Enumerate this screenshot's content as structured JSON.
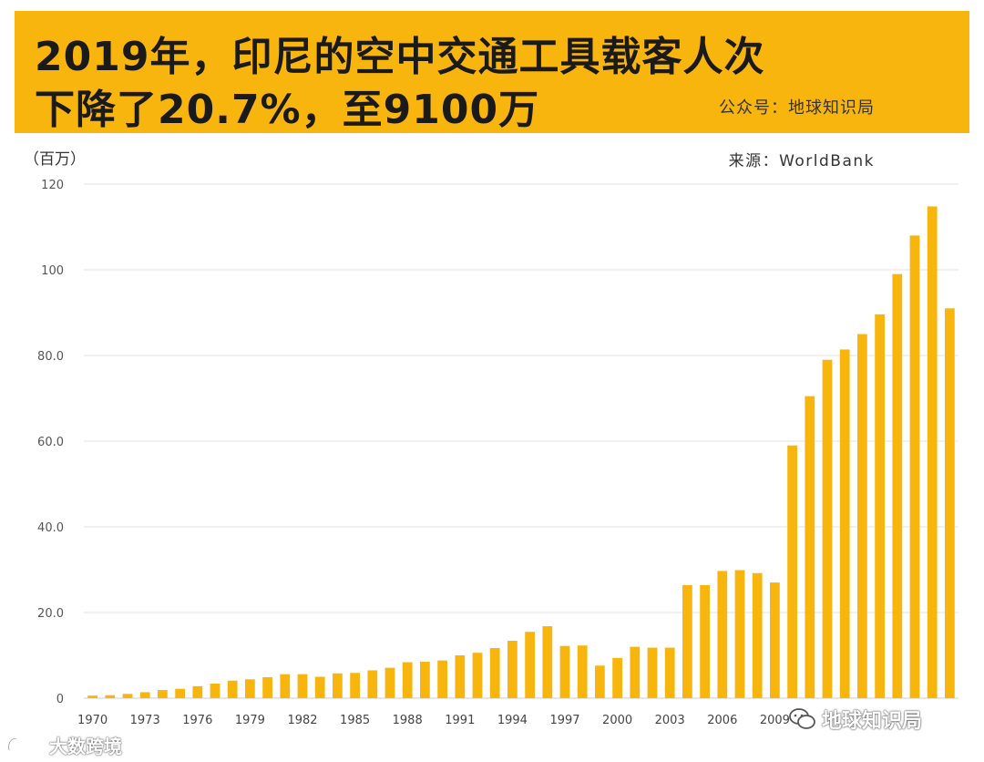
{
  "header": {
    "title_line1": "2019年，印尼的空中交通工具载客人次",
    "title_line2": "下降了20.7%，至9100万",
    "publisher": "公众号：地球知识局"
  },
  "unit_label": "（百万）",
  "source_label": "来源：WorldBank",
  "watermarks": {
    "bottom_right": "地球知识局",
    "bottom_left": "大数跨境"
  },
  "colors": {
    "banner": "#F8B50D",
    "bar": "#F8B50D",
    "grid": "#e3e3e3"
  },
  "chart_data": {
    "type": "bar",
    "title": "2019年，印尼的空中交通工具载客人次下降了20.7%，至9100万",
    "ylabel": "（百万）",
    "xlabel": "",
    "ylim": [
      0,
      120
    ],
    "yticks": [
      "0",
      "20.0",
      "40.0",
      "60.0",
      "80.0",
      "100",
      "120"
    ],
    "ytick_values": [
      0,
      20,
      40,
      60,
      80,
      100,
      120
    ],
    "xtick_labels": [
      "1970",
      "1973",
      "1976",
      "1979",
      "1982",
      "1985",
      "1988",
      "1991",
      "1994",
      "1997",
      "2000",
      "2003",
      "2006",
      "2009"
    ],
    "grid": true,
    "categories": [
      "1970",
      "1971",
      "1972",
      "1973",
      "1974",
      "1975",
      "1976",
      "1977",
      "1978",
      "1979",
      "1980",
      "1981",
      "1982",
      "1983",
      "1984",
      "1985",
      "1986",
      "1987",
      "1988",
      "1989",
      "1990",
      "1991",
      "1992",
      "1993",
      "1994",
      "1995",
      "1996",
      "1997",
      "1998",
      "1999",
      "2000",
      "2001",
      "2002",
      "2003",
      "2004",
      "2005",
      "2006",
      "2007",
      "2008",
      "2009",
      "2010",
      "2011",
      "2012",
      "2013",
      "2014",
      "2015",
      "2016",
      "2017",
      "2018",
      "2019"
    ],
    "values": [
      0.6,
      0.7,
      1.0,
      1.4,
      1.9,
      2.2,
      2.8,
      3.4,
      4.1,
      4.4,
      4.9,
      5.6,
      5.6,
      5.0,
      5.8,
      5.9,
      6.5,
      7.1,
      8.4,
      8.5,
      8.8,
      10.0,
      10.6,
      11.7,
      13.4,
      15.5,
      16.8,
      12.2,
      12.3,
      7.6,
      9.4,
      12.0,
      11.8,
      11.8,
      26.4,
      26.4,
      29.7,
      29.9,
      29.2,
      27.0,
      59.0,
      70.5,
      79.0,
      81.4,
      85.0,
      89.6,
      99.0,
      108.0,
      114.8,
      91.0
    ]
  }
}
